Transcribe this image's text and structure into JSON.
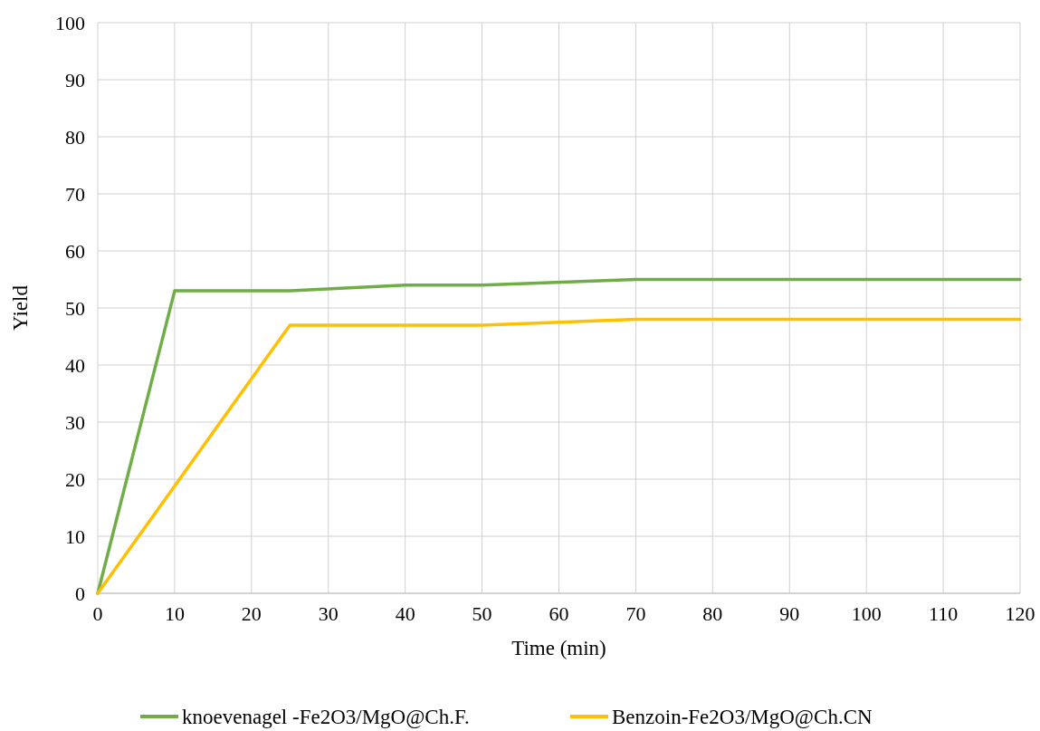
{
  "chart_data": {
    "type": "line",
    "xlabel": "Time (min)",
    "ylabel": "Yield",
    "xlim": [
      0,
      120
    ],
    "xticks": [
      0,
      10,
      20,
      30,
      40,
      50,
      60,
      70,
      80,
      90,
      100,
      110,
      120
    ],
    "ylim": [
      0,
      100
    ],
    "yticks": [
      0,
      10,
      20,
      30,
      40,
      50,
      60,
      70,
      80,
      90,
      100
    ],
    "grid": true,
    "legend": "bottom",
    "marker": "none",
    "line_style": "solid",
    "series": [
      {
        "name": "knoevenagel -Fe2O3/MgO@Ch.F.",
        "color": "#70ad47",
        "x": [
          0,
          10,
          25,
          40,
          50,
          70,
          120
        ],
        "values": [
          0,
          53,
          53,
          54,
          54,
          55,
          55
        ]
      },
      {
        "name": "Benzoin-Fe2O3/MgO@Ch.CN",
        "color": "#ffc000",
        "x": [
          0,
          25,
          50,
          70,
          120
        ],
        "values": [
          0,
          47,
          47,
          48,
          48
        ]
      }
    ]
  }
}
